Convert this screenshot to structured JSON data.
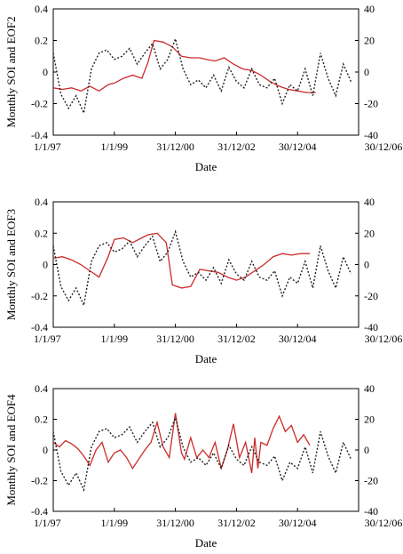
{
  "chart_data": [
    {
      "type": "line",
      "xlabel": "Date",
      "ylabel": "Monthly SOI and EOF2",
      "x_tick_labels": [
        "1/1/97",
        "1/1/99",
        "31/12/00",
        "31/12/02",
        "30/12/04",
        "30/12/06"
      ],
      "xlim": [
        1997.0,
        2007.0
      ],
      "ylim_left": [
        -0.4,
        0.4
      ],
      "ylim_right": [
        -40,
        40
      ],
      "left_ticks": [
        "0.4",
        "0.2",
        "0",
        "-0.2",
        "-0.4"
      ],
      "right_ticks": [
        "40",
        "20",
        "0",
        "-20",
        "-40"
      ],
      "series": [
        {
          "axis": "left",
          "color": "#cc2b2b",
          "style": "solid",
          "x": [
            1997.0,
            1997.3,
            1997.6,
            1997.9,
            1998.2,
            1998.5,
            1998.8,
            1999.0,
            1999.3,
            1999.6,
            1999.9,
            2000.1,
            2000.3,
            2000.6,
            2000.9,
            2001.2,
            2001.5,
            2001.8,
            2002.0,
            2002.3,
            2002.6,
            2002.9,
            2003.2,
            2003.5,
            2003.8,
            2004.1,
            2004.4,
            2004.7,
            2005.0,
            2005.3,
            2005.6
          ],
          "y": [
            -0.1,
            -0.11,
            -0.1,
            -0.12,
            -0.09,
            -0.12,
            -0.08,
            -0.07,
            -0.04,
            -0.02,
            -0.04,
            0.06,
            0.2,
            0.19,
            0.16,
            0.1,
            0.09,
            0.09,
            0.08,
            0.07,
            0.09,
            0.05,
            0.02,
            0.01,
            -0.02,
            -0.06,
            -0.09,
            -0.11,
            -0.12,
            -0.13,
            -0.13
          ]
        },
        {
          "axis": "right",
          "color": "#222222",
          "style": "dotted",
          "x": [
            1997.0,
            1997.25,
            1997.5,
            1997.75,
            1998.0,
            1998.25,
            1998.5,
            1998.75,
            1999.0,
            1999.25,
            1999.5,
            1999.75,
            2000.0,
            2000.25,
            2000.5,
            2000.75,
            2001.0,
            2001.25,
            2001.5,
            2001.75,
            2002.0,
            2002.25,
            2002.5,
            2002.75,
            2003.0,
            2003.25,
            2003.5,
            2003.75,
            2004.0,
            2004.25,
            2004.5,
            2004.75,
            2005.0,
            2005.25,
            2005.5,
            2005.75,
            2006.0,
            2006.25,
            2006.5,
            2006.75
          ],
          "y": [
            12,
            -14,
            -23,
            -15,
            -26,
            2,
            12,
            14,
            8,
            10,
            15,
            5,
            12,
            18,
            2,
            8,
            21,
            2,
            -8,
            -5,
            -10,
            -2,
            -12,
            3,
            -6,
            -10,
            2,
            -8,
            -10,
            -4,
            -20,
            -8,
            -12,
            2,
            -15,
            12,
            -4,
            -15,
            5,
            -6
          ]
        }
      ]
    },
    {
      "type": "line",
      "xlabel": "Date",
      "ylabel": "Monthly SOI and EOF3",
      "x_tick_labels": [
        "1/1/97",
        "1/1/99",
        "31/12/00",
        "31/12/02",
        "30/12/04",
        "30/12/06"
      ],
      "xlim": [
        1997.0,
        2007.0
      ],
      "ylim_left": [
        -0.4,
        0.4
      ],
      "ylim_right": [
        -40,
        40
      ],
      "left_ticks": [
        "0.4",
        "0.2",
        "0",
        "-0.2",
        "-0.4"
      ],
      "right_ticks": [
        "40",
        "20",
        "0",
        "-20",
        "-40"
      ],
      "series": [
        {
          "axis": "left",
          "color": "#cc2b2b",
          "style": "solid",
          "x": [
            1997.0,
            1997.3,
            1997.6,
            1997.9,
            1998.2,
            1998.5,
            1998.8,
            1999.0,
            1999.3,
            1999.6,
            1999.9,
            2000.1,
            2000.4,
            2000.7,
            2000.9,
            2001.2,
            2001.5,
            2001.8,
            2002.1,
            2002.4,
            2002.7,
            2003.0,
            2003.3,
            2003.6,
            2003.9,
            2004.2,
            2004.5,
            2004.8,
            2005.1,
            2005.4
          ],
          "y": [
            0.04,
            0.05,
            0.03,
            0.0,
            -0.04,
            -0.08,
            0.05,
            0.16,
            0.17,
            0.14,
            0.17,
            0.19,
            0.2,
            0.14,
            -0.13,
            -0.15,
            -0.14,
            -0.03,
            -0.04,
            -0.05,
            -0.08,
            -0.1,
            -0.08,
            -0.04,
            0.0,
            0.05,
            0.07,
            0.06,
            0.07,
            0.07
          ]
        },
        {
          "axis": "right",
          "color": "#222222",
          "style": "dotted",
          "x": [
            1997.0,
            1997.25,
            1997.5,
            1997.75,
            1998.0,
            1998.25,
            1998.5,
            1998.75,
            1999.0,
            1999.25,
            1999.5,
            1999.75,
            2000.0,
            2000.25,
            2000.5,
            2000.75,
            2001.0,
            2001.25,
            2001.5,
            2001.75,
            2002.0,
            2002.25,
            2002.5,
            2002.75,
            2003.0,
            2003.25,
            2003.5,
            2003.75,
            2004.0,
            2004.25,
            2004.5,
            2004.75,
            2005.0,
            2005.25,
            2005.5,
            2005.75,
            2006.0,
            2006.25,
            2006.5,
            2006.75
          ],
          "y": [
            12,
            -14,
            -23,
            -15,
            -26,
            2,
            12,
            14,
            8,
            10,
            15,
            5,
            12,
            18,
            2,
            8,
            21,
            2,
            -8,
            -5,
            -10,
            -2,
            -12,
            3,
            -6,
            -10,
            2,
            -8,
            -10,
            -4,
            -20,
            -8,
            -12,
            2,
            -15,
            12,
            -4,
            -15,
            5,
            -6
          ]
        }
      ]
    },
    {
      "type": "line",
      "xlabel": "Date",
      "ylabel": "Monthly SOI and EOF4",
      "x_tick_labels": [
        "1/1/97",
        "1/1/99",
        "31/12/00",
        "31/12/02",
        "30/12/04",
        "30/12/06"
      ],
      "xlim": [
        1997.0,
        2007.0
      ],
      "ylim_left": [
        -0.4,
        0.4
      ],
      "ylim_right": [
        -40,
        40
      ],
      "left_ticks": [
        "0.4",
        "0.2",
        "0",
        "-0.2",
        "-0.4"
      ],
      "right_ticks": [
        "40",
        "20",
        "0",
        "-20",
        "-40"
      ],
      "series": [
        {
          "axis": "left",
          "color": "#cc2b2b",
          "style": "solid",
          "x": [
            1997.0,
            1997.2,
            1997.4,
            1997.6,
            1997.8,
            1998.0,
            1998.2,
            1998.4,
            1998.6,
            1998.8,
            1999.0,
            1999.2,
            1999.4,
            1999.6,
            1999.8,
            2000.0,
            2000.2,
            2000.4,
            2000.6,
            2000.8,
            2001.0,
            2001.2,
            2001.3,
            2001.5,
            2001.7,
            2001.9,
            2002.1,
            2002.3,
            2002.5,
            2002.7,
            2002.9,
            2003.1,
            2003.3,
            2003.5,
            2003.6,
            2003.7,
            2003.8,
            2004.0,
            2004.2,
            2004.4,
            2004.6,
            2004.8,
            2005.0,
            2005.2,
            2005.4
          ],
          "y": [
            0.05,
            0.02,
            0.06,
            0.04,
            0.01,
            -0.04,
            -0.1,
            0.0,
            0.05,
            -0.08,
            -0.02,
            0.0,
            -0.05,
            -0.12,
            -0.06,
            0.0,
            0.05,
            0.18,
            0.02,
            -0.05,
            0.24,
            -0.02,
            -0.06,
            0.08,
            -0.05,
            0.0,
            -0.05,
            0.05,
            -0.12,
            0.0,
            0.17,
            -0.05,
            0.05,
            -0.15,
            0.08,
            -0.12,
            0.05,
            0.03,
            0.14,
            0.22,
            0.12,
            0.16,
            0.05,
            0.1,
            0.03
          ]
        },
        {
          "axis": "right",
          "color": "#222222",
          "style": "dotted",
          "x": [
            1997.0,
            1997.25,
            1997.5,
            1997.75,
            1998.0,
            1998.25,
            1998.5,
            1998.75,
            1999.0,
            1999.25,
            1999.5,
            1999.75,
            2000.0,
            2000.25,
            2000.5,
            2000.75,
            2001.0,
            2001.25,
            2001.5,
            2001.75,
            2002.0,
            2002.25,
            2002.5,
            2002.75,
            2003.0,
            2003.25,
            2003.5,
            2003.75,
            2004.0,
            2004.25,
            2004.5,
            2004.75,
            2005.0,
            2005.25,
            2005.5,
            2005.75,
            2006.0,
            2006.25,
            2006.5,
            2006.75
          ],
          "y": [
            12,
            -14,
            -23,
            -15,
            -26,
            2,
            12,
            14,
            8,
            10,
            15,
            5,
            12,
            18,
            2,
            8,
            21,
            2,
            -8,
            -5,
            -10,
            -2,
            -12,
            3,
            -6,
            -10,
            2,
            -8,
            -10,
            -4,
            -20,
            -8,
            -12,
            2,
            -15,
            12,
            -4,
            -15,
            5,
            -6
          ]
        }
      ]
    }
  ]
}
